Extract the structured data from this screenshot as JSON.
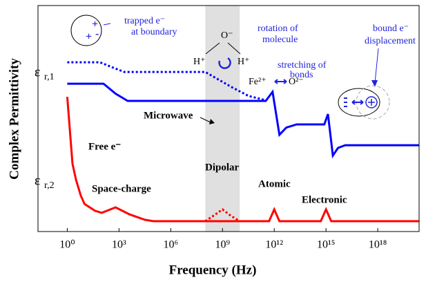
{
  "chart_data": {
    "type": "line",
    "xlabel": "Frequency (Hz)",
    "ylabel": "Complex Permittivity",
    "xscale": "log",
    "xlim": [
      0.02,
      2.5e+20
    ],
    "ylim": [
      0,
      1
    ],
    "xticks": [
      {
        "value": 1,
        "label": "10⁰"
      },
      {
        "value": 1000,
        "label": "10³"
      },
      {
        "value": 1000000,
        "label": "10⁶"
      },
      {
        "value": 1000000000,
        "label": "10⁹"
      },
      {
        "value": 1000000000000,
        "label": "10¹²"
      },
      {
        "value": 1000000000000000,
        "label": "10¹⁵"
      },
      {
        "value": 1000000000000000000,
        "label": "10¹⁸"
      }
    ],
    "band": {
      "xlim": [
        100000000,
        10000000000
      ],
      "color": "#e0e0e0"
    },
    "series": [
      {
        "color": "#0000ff",
        "style": "dotted",
        "x": [
          1,
          79,
          400,
          2000,
          100000000,
          3200000000,
          32000000000,
          320000000000
        ],
        "values": [
          0.749,
          0.749,
          0.727,
          0.706,
          0.706,
          0.64,
          0.6,
          0.581
        ]
      },
      {
        "color": "#0000ff",
        "style": "solid",
        "x": [
          1,
          126,
          630,
          3160,
          320000000000,
          800000000000,
          2000000000000,
          5000000000000,
          20000000000000,
          800000000000000,
          1300000000000000,
          2500000000000000,
          5000000000000000,
          13000000000000000,
          2.5e+20
        ],
        "values": [
          0.654,
          0.654,
          0.61,
          0.578,
          0.578,
          0.618,
          0.428,
          0.46,
          0.474,
          0.474,
          0.52,
          0.336,
          0.37,
          0.382,
          0.382
        ]
      },
      {
        "color": "#ff0000",
        "style": "solid",
        "x": [
          1,
          2,
          3.2,
          6,
          10,
          40,
          100,
          630,
          4000,
          32000,
          100000,
          500000000000,
          1000000000000,
          2000000000000,
          500000000000000,
          1000000000000000,
          2000000000000000,
          2.5e+20
        ],
        "values": [
          0.596,
          0.3,
          0.229,
          0.16,
          0.122,
          0.092,
          0.083,
          0.107,
          0.076,
          0.052,
          0.046,
          0.046,
          0.098,
          0.046,
          0.046,
          0.098,
          0.046,
          0.046
        ]
      },
      {
        "color": "#ff0000",
        "style": "dotted",
        "x": [
          100000000,
          300000000,
          1000000000,
          3000000000,
          10000000000
        ],
        "values": [
          0.046,
          0.07,
          0.098,
          0.07,
          0.046
        ]
      }
    ],
    "annotations": {
      "eps1": {
        "symbol": "ε",
        "sub": "r,1"
      },
      "eps2": {
        "symbol": "ε",
        "sub": "r,2"
      },
      "microwave": "Microwave",
      "free": "Free e⁻",
      "dipolar": "Dipolar",
      "space_charge": "Space-charge",
      "atomic": "Atomic",
      "electronic": "Electronic",
      "trapped": [
        "trapped e⁻",
        "at boundary"
      ],
      "rotation": [
        "rotation of",
        "molecule"
      ],
      "stretching": [
        "stretching of",
        "bonds"
      ],
      "bound": [
        "bound e⁻",
        "displacement"
      ],
      "molecule": {
        "o": "O⁻",
        "h1": "H⁺",
        "h2": "H⁺"
      },
      "bond": {
        "fe": "Fe²⁺",
        "o": "O²⁻"
      }
    }
  }
}
